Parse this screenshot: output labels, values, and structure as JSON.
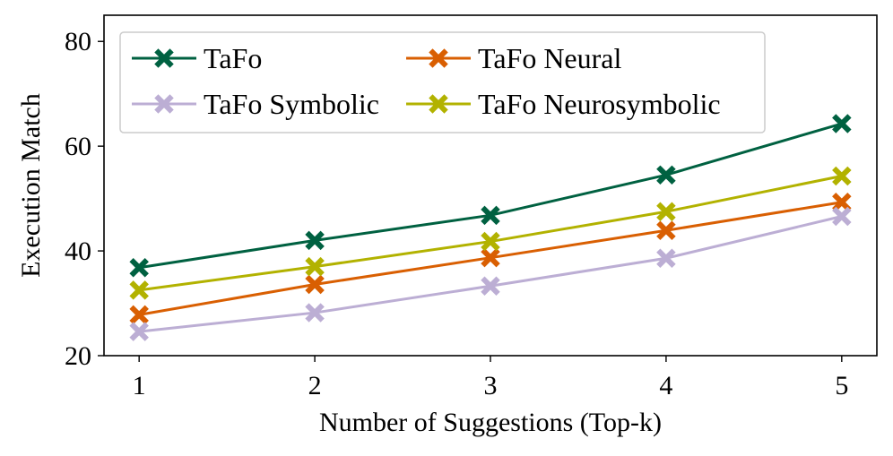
{
  "chart_data": {
    "type": "line",
    "xlabel": "Number of Suggestions (Top-k)",
    "ylabel": "Execution Match",
    "x": [
      1,
      2,
      3,
      4,
      5
    ],
    "xlim": [
      0.8,
      5.2
    ],
    "ylim": [
      20,
      85
    ],
    "xticks": [
      "1",
      "2",
      "3",
      "4",
      "5"
    ],
    "yticks": [
      "20",
      "40",
      "60",
      "80"
    ],
    "grid": false,
    "legend_position": "top-left",
    "series": [
      {
        "name": "TaFo",
        "color": "#006141",
        "values": [
          36.8,
          42.0,
          46.8,
          54.5,
          64.3
        ]
      },
      {
        "name": "TaFo Neural",
        "color": "#d95f02",
        "values": [
          27.8,
          33.6,
          38.7,
          43.9,
          49.3
        ]
      },
      {
        "name": "TaFo Symbolic",
        "color": "#bcaed4",
        "values": [
          24.6,
          28.2,
          33.3,
          38.6,
          46.6
        ]
      },
      {
        "name": "TaFo Neurosymbolic",
        "color": "#b2b200",
        "values": [
          32.5,
          37.0,
          41.8,
          47.5,
          54.3
        ]
      }
    ],
    "legend_order": [
      0,
      1,
      2,
      3
    ]
  }
}
